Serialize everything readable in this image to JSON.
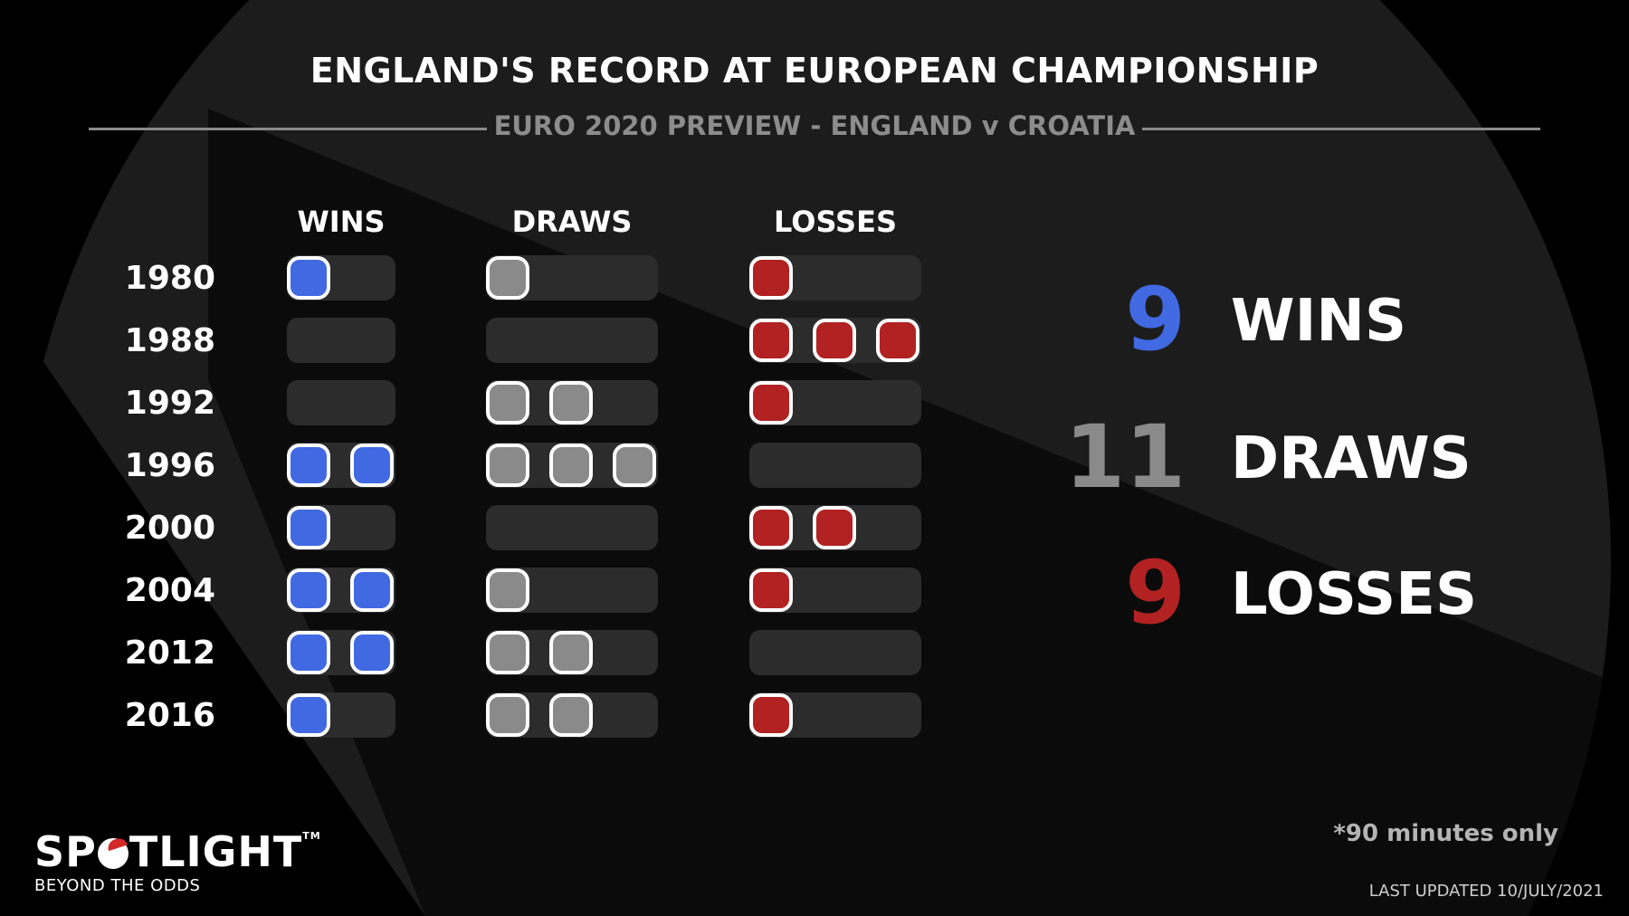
{
  "title": "ENGLAND'S RECORD AT EUROPEAN CHAMPIONSHIP",
  "subtitle": "EURO 2020 PREVIEW - ENGLAND v CROATIA",
  "colors": {
    "wins": "#4169e1",
    "draws": "#8a8a8a",
    "losses": "#b22222",
    "track": "#2c2c2c"
  },
  "chart_data": {
    "type": "table",
    "title": "ENGLAND'S RECORD AT EUROPEAN CHAMPIONSHIP",
    "subtitle": "EURO 2020 PREVIEW - ENGLAND v CROATIA",
    "columns": [
      "WINS",
      "DRAWS",
      "LOSSES"
    ],
    "column_capacity": [
      2,
      3,
      3
    ],
    "rows": [
      {
        "year": "1980",
        "wins": 1,
        "draws": 1,
        "losses": 1
      },
      {
        "year": "1988",
        "wins": 0,
        "draws": 0,
        "losses": 3
      },
      {
        "year": "1992",
        "wins": 0,
        "draws": 2,
        "losses": 1
      },
      {
        "year": "1996",
        "wins": 2,
        "draws": 3,
        "losses": 0
      },
      {
        "year": "2000",
        "wins": 1,
        "draws": 0,
        "losses": 2
      },
      {
        "year": "2004",
        "wins": 2,
        "draws": 1,
        "losses": 1
      },
      {
        "year": "2012",
        "wins": 2,
        "draws": 2,
        "losses": 0
      },
      {
        "year": "2016",
        "wins": 1,
        "draws": 2,
        "losses": 1
      }
    ]
  },
  "summary": [
    {
      "key": "wins",
      "value": "9",
      "label": "WINS"
    },
    {
      "key": "draws",
      "value": "11",
      "label": "DRAWS"
    },
    {
      "key": "losses",
      "value": "9",
      "label": "LOSSES"
    }
  ],
  "footnote": "*90 minutes only",
  "last_updated": "LAST UPDATED 10/JULY/2021",
  "logo": {
    "text_before": "SP",
    "text_after": "TLIGHT",
    "tm": "TM",
    "tagline": "BEYOND THE ODDS"
  }
}
